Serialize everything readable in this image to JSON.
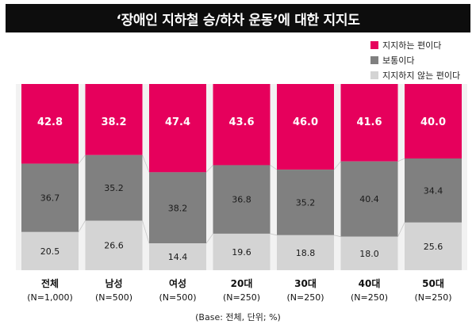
{
  "title": "‘장애인 지하철 승/하차 운동’에 대한 지지도",
  "base_note": "(Base: 전체, 단위; %)",
  "colors": {
    "support": "#e6005c",
    "neutral": "#808080",
    "oppose": "#d4d4d4",
    "background_band": "#f2f2f2"
  },
  "chart_data": {
    "type": "bar",
    "stacked": true,
    "orientation": "vertical",
    "normalized_to": 100,
    "categories": [
      "전체",
      "남성",
      "여성",
      "20대",
      "30대",
      "40대",
      "50대"
    ],
    "category_sublabels": [
      "(N=1,000)",
      "(N=500)",
      "(N=500)",
      "(N=250)",
      "(N=250)",
      "(N=250)",
      "(N=250)"
    ],
    "series": [
      {
        "name": "지지하는 편이다",
        "color": "#e6005c",
        "values": [
          42.8,
          38.2,
          47.4,
          43.6,
          46.0,
          41.6,
          40.0
        ],
        "labels": [
          "42.8",
          "38.2",
          "47.4",
          "43.6",
          "46.0",
          "41.6",
          "40.0"
        ]
      },
      {
        "name": "보통이다",
        "color": "#808080",
        "values": [
          36.7,
          35.2,
          38.2,
          36.8,
          35.2,
          40.4,
          34.4
        ],
        "labels": [
          "36.7",
          "35.2",
          "38.2",
          "36.8",
          "35.2",
          "40.4",
          "34.4"
        ]
      },
      {
        "name": "지지하지 않는 편이다",
        "color": "#d4d4d4",
        "values": [
          20.5,
          26.6,
          14.4,
          19.6,
          18.8,
          18.0,
          25.6
        ],
        "labels": [
          "20.5",
          "26.6",
          "14.4",
          "19.6",
          "18.8",
          "18.0",
          "25.6"
        ]
      }
    ],
    "ylim": [
      0,
      100
    ],
    "legend_position": "top-right",
    "connector_lines": true
  }
}
